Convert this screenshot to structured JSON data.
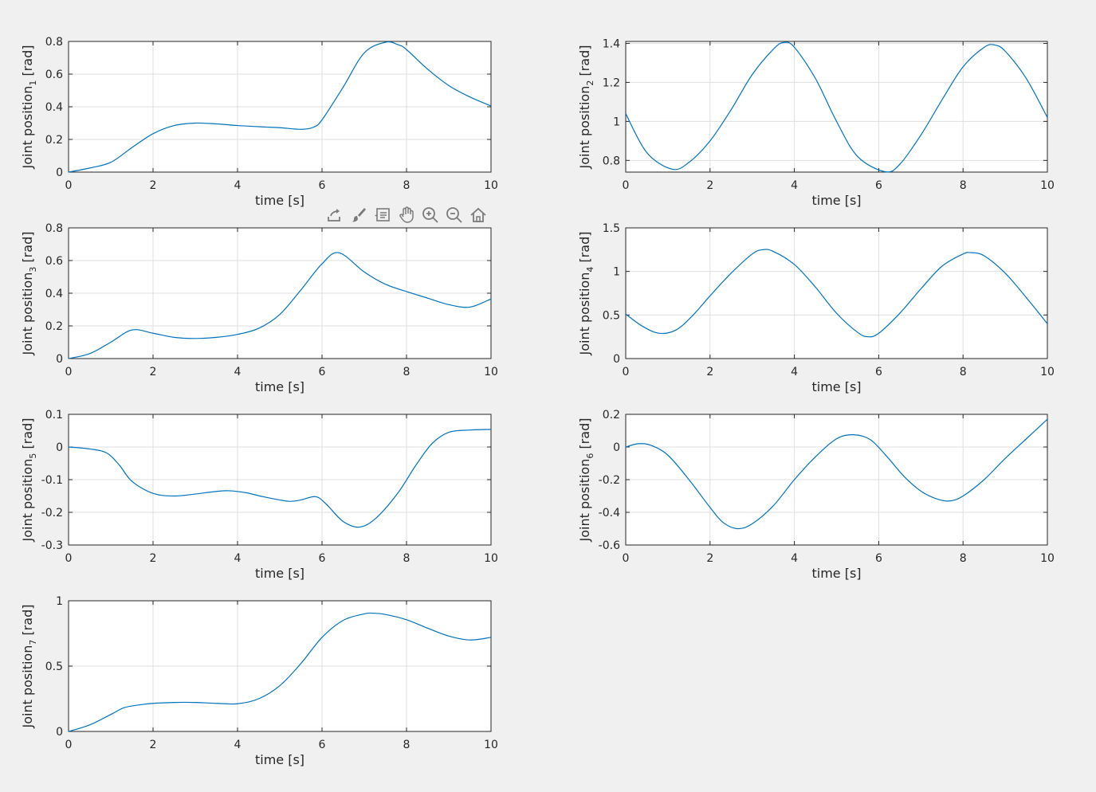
{
  "colors": {
    "series": "#0072BD",
    "grid": "#dfdfdf",
    "axis": "#262626",
    "background": "#f0f0f0"
  },
  "toolbar": {
    "icons": [
      "export-icon",
      "brush-icon",
      "data-tips-icon",
      "pan-icon",
      "zoom-in-icon",
      "zoom-out-icon",
      "home-icon"
    ]
  },
  "chart_data": [
    {
      "type": "line",
      "position_label": "top-left",
      "ylabel_main": "Joint position",
      "ylabel_sub": "1",
      "ylabel_unit": " [rad]",
      "xlabel": "time [s]",
      "xlim": [
        0,
        10
      ],
      "ylim": [
        0,
        0.8
      ],
      "xticks": [
        0,
        2,
        4,
        6,
        8,
        10
      ],
      "yticks": [
        0,
        0.2,
        0.4,
        0.6,
        0.8
      ],
      "grid": true,
      "x": [
        0,
        0.5,
        1.0,
        1.5,
        2.0,
        2.5,
        3.0,
        3.5,
        4.0,
        4.5,
        5.0,
        5.5,
        5.8,
        6.0,
        6.5,
        7.0,
        7.5,
        7.8,
        8.0,
        8.5,
        9.0,
        9.5,
        10.0
      ],
      "y": [
        0,
        0.025,
        0.06,
        0.15,
        0.235,
        0.285,
        0.3,
        0.295,
        0.285,
        0.278,
        0.272,
        0.262,
        0.275,
        0.32,
        0.52,
        0.73,
        0.795,
        0.78,
        0.75,
        0.63,
        0.53,
        0.46,
        0.405
      ]
    },
    {
      "type": "line",
      "position_label": "top-right",
      "ylabel_main": "Joint position",
      "ylabel_sub": "2",
      "ylabel_unit": " [rad]",
      "xlabel": "time [s]",
      "xlim": [
        0,
        10
      ],
      "ylim": [
        0.74,
        1.41
      ],
      "xticks": [
        0,
        2,
        4,
        6,
        8,
        10
      ],
      "yticks": [
        0.8,
        1,
        1.2,
        1.4
      ],
      "grid": true,
      "x": [
        0,
        0.5,
        1.1,
        1.5,
        2.0,
        2.5,
        3.0,
        3.5,
        3.75,
        4.0,
        4.5,
        5.0,
        5.5,
        6.15,
        6.5,
        7.0,
        7.5,
        8.0,
        8.5,
        8.75,
        9.0,
        9.5,
        10.0
      ],
      "y": [
        1.04,
        0.84,
        0.755,
        0.79,
        0.9,
        1.06,
        1.24,
        1.37,
        1.405,
        1.38,
        1.22,
        1.0,
        0.82,
        0.742,
        0.78,
        0.93,
        1.11,
        1.28,
        1.38,
        1.392,
        1.36,
        1.22,
        1.02
      ]
    },
    {
      "type": "line",
      "position_label": "middle-left",
      "ylabel_main": "Joint position",
      "ylabel_sub": "3",
      "ylabel_unit": " [rad]",
      "xlabel": "time [s]",
      "xlim": [
        0,
        10
      ],
      "ylim": [
        0,
        0.8
      ],
      "xticks": [
        0,
        2,
        4,
        6,
        8,
        10
      ],
      "yticks": [
        0,
        0.2,
        0.4,
        0.6,
        0.8
      ],
      "grid": true,
      "x": [
        0,
        0.5,
        1.0,
        1.5,
        2.0,
        2.5,
        3.0,
        3.5,
        4.0,
        4.5,
        5.0,
        5.5,
        6.0,
        6.4,
        7.0,
        7.5,
        8.0,
        8.5,
        9.0,
        9.5,
        10.0
      ],
      "y": [
        0,
        0.03,
        0.1,
        0.175,
        0.155,
        0.13,
        0.123,
        0.13,
        0.148,
        0.185,
        0.27,
        0.42,
        0.58,
        0.648,
        0.53,
        0.455,
        0.41,
        0.37,
        0.33,
        0.315,
        0.365
      ]
    },
    {
      "type": "line",
      "position_label": "middle-right",
      "ylabel_main": "Joint position",
      "ylabel_sub": "4",
      "ylabel_unit": " [rad]",
      "xlabel": "time [s]",
      "xlim": [
        0,
        10
      ],
      "ylim": [
        0,
        1.5
      ],
      "xticks": [
        0,
        2,
        4,
        6,
        8,
        10
      ],
      "yticks": [
        0,
        0.5,
        1,
        1.5
      ],
      "grid": true,
      "x": [
        0,
        0.4,
        0.8,
        1.2,
        1.6,
        2.0,
        2.5,
        3.0,
        3.25,
        3.5,
        4.0,
        4.5,
        5.0,
        5.5,
        5.75,
        6.0,
        6.5,
        7.0,
        7.5,
        8.0,
        8.2,
        8.5,
        9.0,
        9.5,
        10.0
      ],
      "y": [
        0.51,
        0.37,
        0.29,
        0.33,
        0.5,
        0.72,
        0.98,
        1.2,
        1.25,
        1.23,
        1.08,
        0.82,
        0.52,
        0.3,
        0.25,
        0.29,
        0.52,
        0.8,
        1.06,
        1.2,
        1.215,
        1.18,
        0.98,
        0.7,
        0.4
      ]
    },
    {
      "type": "line",
      "position_label": "lower-left",
      "ylabel_main": "Joint position",
      "ylabel_sub": "5",
      "ylabel_unit": " [rad]",
      "xlabel": "time [s]",
      "xlim": [
        0,
        10
      ],
      "ylim": [
        -0.3,
        0.1
      ],
      "xticks": [
        0,
        2,
        4,
        6,
        8,
        10
      ],
      "yticks": [
        -0.3,
        -0.2,
        -0.1,
        0,
        0.1
      ],
      "grid": true,
      "x": [
        0,
        0.5,
        0.9,
        1.2,
        1.5,
        2.0,
        2.5,
        3.0,
        3.5,
        3.8,
        4.2,
        4.6,
        5.2,
        5.5,
        5.85,
        6.1,
        6.5,
        6.9,
        7.3,
        7.8,
        8.2,
        8.6,
        9.0,
        9.5,
        10.0
      ],
      "y": [
        0,
        -0.006,
        -0.018,
        -0.055,
        -0.105,
        -0.142,
        -0.15,
        -0.144,
        -0.136,
        -0.134,
        -0.14,
        -0.152,
        -0.166,
        -0.162,
        -0.152,
        -0.175,
        -0.228,
        -0.245,
        -0.215,
        -0.14,
        -0.06,
        0.01,
        0.045,
        0.052,
        0.054
      ]
    },
    {
      "type": "line",
      "position_label": "lower-right",
      "ylabel_main": "Joint position",
      "ylabel_sub": "6",
      "ylabel_unit": " [rad]",
      "xlabel": "time [s]",
      "xlim": [
        0,
        10
      ],
      "ylim": [
        -0.6,
        0.2
      ],
      "xticks": [
        0,
        2,
        4,
        6,
        8,
        10
      ],
      "yticks": [
        -0.6,
        -0.4,
        -0.2,
        0,
        0.2
      ],
      "grid": true,
      "x": [
        0,
        0.3,
        0.6,
        1.0,
        1.5,
        2.0,
        2.3,
        2.65,
        3.0,
        3.5,
        4.0,
        4.5,
        5.0,
        5.4,
        5.8,
        6.2,
        6.6,
        7.0,
        7.4,
        7.7,
        8.0,
        8.5,
        9.0,
        9.5,
        10.0
      ],
      "y": [
        0,
        0.02,
        0.01,
        -0.05,
        -0.2,
        -0.37,
        -0.46,
        -0.5,
        -0.47,
        -0.36,
        -0.2,
        -0.06,
        0.05,
        0.075,
        0.045,
        -0.06,
        -0.18,
        -0.27,
        -0.32,
        -0.33,
        -0.3,
        -0.2,
        -0.07,
        0.05,
        0.17
      ]
    },
    {
      "type": "line",
      "position_label": "bottom-left",
      "ylabel_main": "Joint position",
      "ylabel_sub": "7",
      "ylabel_unit": " [rad]",
      "xlabel": "time [s]",
      "xlim": [
        0,
        10
      ],
      "ylim": [
        0,
        1
      ],
      "xticks": [
        0,
        2,
        4,
        6,
        8,
        10
      ],
      "yticks": [
        0,
        0.5,
        1
      ],
      "grid": true,
      "x": [
        0,
        0.5,
        1.0,
        1.3,
        1.6,
        2.0,
        2.5,
        3.0,
        3.5,
        4.0,
        4.5,
        5.0,
        5.5,
        6.0,
        6.5,
        7.0,
        7.2,
        7.5,
        8.0,
        8.5,
        9.0,
        9.5,
        10.0
      ],
      "y": [
        0,
        0.05,
        0.13,
        0.18,
        0.2,
        0.215,
        0.222,
        0.222,
        0.215,
        0.212,
        0.25,
        0.35,
        0.52,
        0.72,
        0.85,
        0.9,
        0.905,
        0.895,
        0.855,
        0.79,
        0.73,
        0.7,
        0.72
      ]
    }
  ]
}
